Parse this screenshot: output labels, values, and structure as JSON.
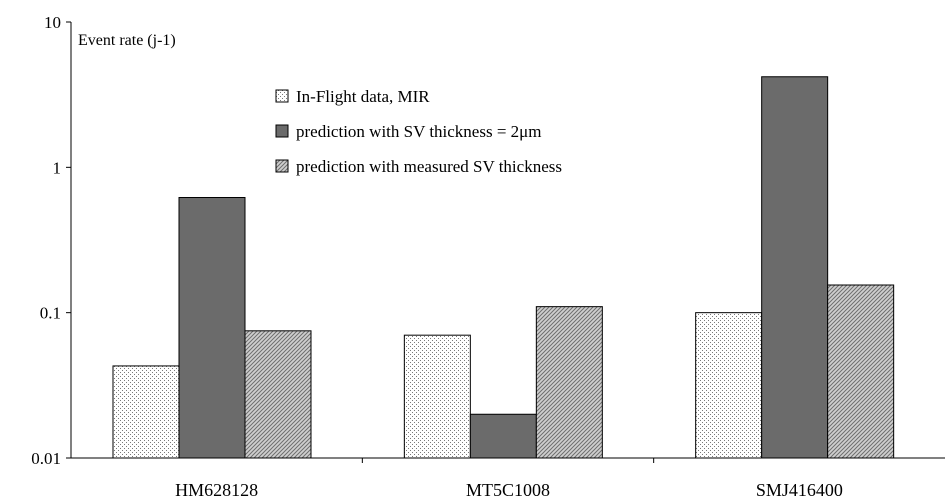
{
  "chart_data": {
    "type": "bar",
    "scale": "log",
    "ylabel": "Event rate (j-1)",
    "ylim": [
      0.01,
      10
    ],
    "yticks": [
      {
        "value": 10,
        "label": "10"
      },
      {
        "value": 1,
        "label": "1"
      },
      {
        "value": 0.1,
        "label": "0.1"
      },
      {
        "value": 0.01,
        "label": "0.01"
      }
    ],
    "categories": [
      "HM628128",
      "MT5C1008",
      "SMJ416400"
    ],
    "series": [
      {
        "name": "In-Flight data, MIR",
        "pattern": "dots",
        "values": [
          0.043,
          0.07,
          0.1
        ]
      },
      {
        "name": "prediction with SV thickness = 2μm",
        "pattern": "solid",
        "color": "#6b6b6b",
        "values": [
          0.62,
          0.02,
          4.2
        ]
      },
      {
        "name": "prediction with measured SV thickness",
        "pattern": "hatch",
        "values": [
          0.075,
          0.11,
          0.155
        ]
      }
    ],
    "grid": false,
    "legend_position": "top-center"
  }
}
